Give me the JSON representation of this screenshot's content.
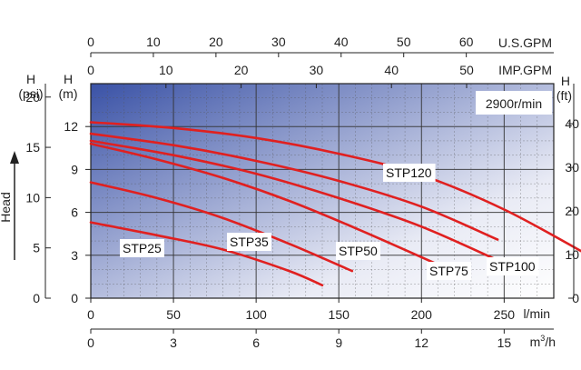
{
  "chart_data": {
    "type": "line",
    "speed_label": "2900r/min",
    "x_axis": {
      "primary": {
        "unit": "l/min",
        "range": [
          0,
          280
        ],
        "ticks": [
          0,
          50,
          100,
          150,
          200,
          250
        ]
      },
      "cubic": {
        "unit_main": "m",
        "unit_sup": "3",
        "unit_tail": "/h",
        "ticks": [
          0,
          3,
          6,
          9,
          12,
          15
        ]
      },
      "usgpm": {
        "unit": "U.S.GPM",
        "ticks": [
          0,
          10,
          20,
          30,
          40,
          50,
          60
        ]
      },
      "impgpm": {
        "unit": "IMP.GPM",
        "ticks": [
          0,
          10,
          20,
          30,
          40,
          50
        ]
      }
    },
    "y_axis": {
      "primary": {
        "unit_top": "H",
        "unit": "(m)",
        "range": [
          0,
          15
        ],
        "ticks": [
          0,
          3,
          6,
          9,
          12
        ]
      },
      "psi": {
        "unit_top": "H",
        "unit": "(psi)",
        "ticks": [
          0,
          5,
          10,
          15,
          20
        ]
      },
      "ft": {
        "unit_top": "H",
        "unit": "(ft)",
        "ticks": [
          0,
          10,
          20,
          30,
          40
        ]
      },
      "side_label": "Head"
    },
    "series": [
      {
        "name": "STP25",
        "x": [
          0,
          40,
          80,
          120,
          140
        ],
        "y": [
          5.3,
          4.4,
          3.4,
          1.9,
          0.9
        ]
      },
      {
        "name": "STP35",
        "x": [
          0,
          40,
          80,
          120,
          158
        ],
        "y": [
          8.1,
          7.0,
          5.6,
          3.8,
          1.9
        ]
      },
      {
        "name": "STP50",
        "x": [
          0,
          40,
          80,
          120,
          160,
          211
        ],
        "y": [
          10.8,
          9.7,
          8.4,
          6.8,
          4.9,
          2.3
        ]
      },
      {
        "name": "STP75",
        "x": [
          0,
          50,
          100,
          150,
          200,
          247
        ],
        "y": [
          11.0,
          10.0,
          8.7,
          7.0,
          5.0,
          2.6
        ]
      },
      {
        "name": "STP100",
        "x": [
          0,
          50,
          100,
          150,
          200,
          246
        ],
        "y": [
          11.5,
          10.7,
          9.6,
          8.2,
          6.4,
          4.1
        ]
      },
      {
        "name": "STP120",
        "x": [
          0,
          50,
          100,
          150,
          200,
          250,
          298
        ],
        "y": [
          12.3,
          11.9,
          11.2,
          10.1,
          8.6,
          6.2,
          3.2
        ]
      }
    ],
    "grid": true,
    "line_color": "#e02020",
    "bg_gradient": [
      "#3a52a6",
      "#ffffff"
    ]
  }
}
